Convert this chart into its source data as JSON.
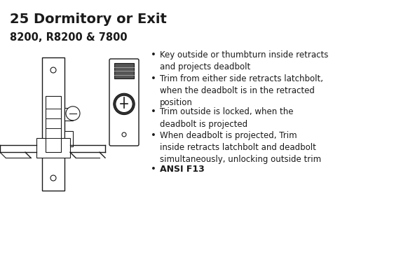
{
  "title": "25 Dormitory or Exit",
  "subtitle": "8200, R8200 & 7800",
  "bullet_points": [
    "Key outside or thumbturn inside retracts\nand projects deadbolt",
    "Trim from either side retracts latchbolt,\nwhen the deadbolt is in the retracted\nposition",
    "Trim outside is locked, when the\ndeadbolt is projected",
    "When deadbolt is projected, Trim\ninside retracts latchbolt and deadbolt\nsimultaneously, unlocking outside trim",
    "ANSI F13"
  ],
  "background_color": "#ffffff",
  "text_color": "#1a1a1a",
  "title_fontsize": 14,
  "subtitle_fontsize": 10.5,
  "bullet_fontsize": 8.5
}
